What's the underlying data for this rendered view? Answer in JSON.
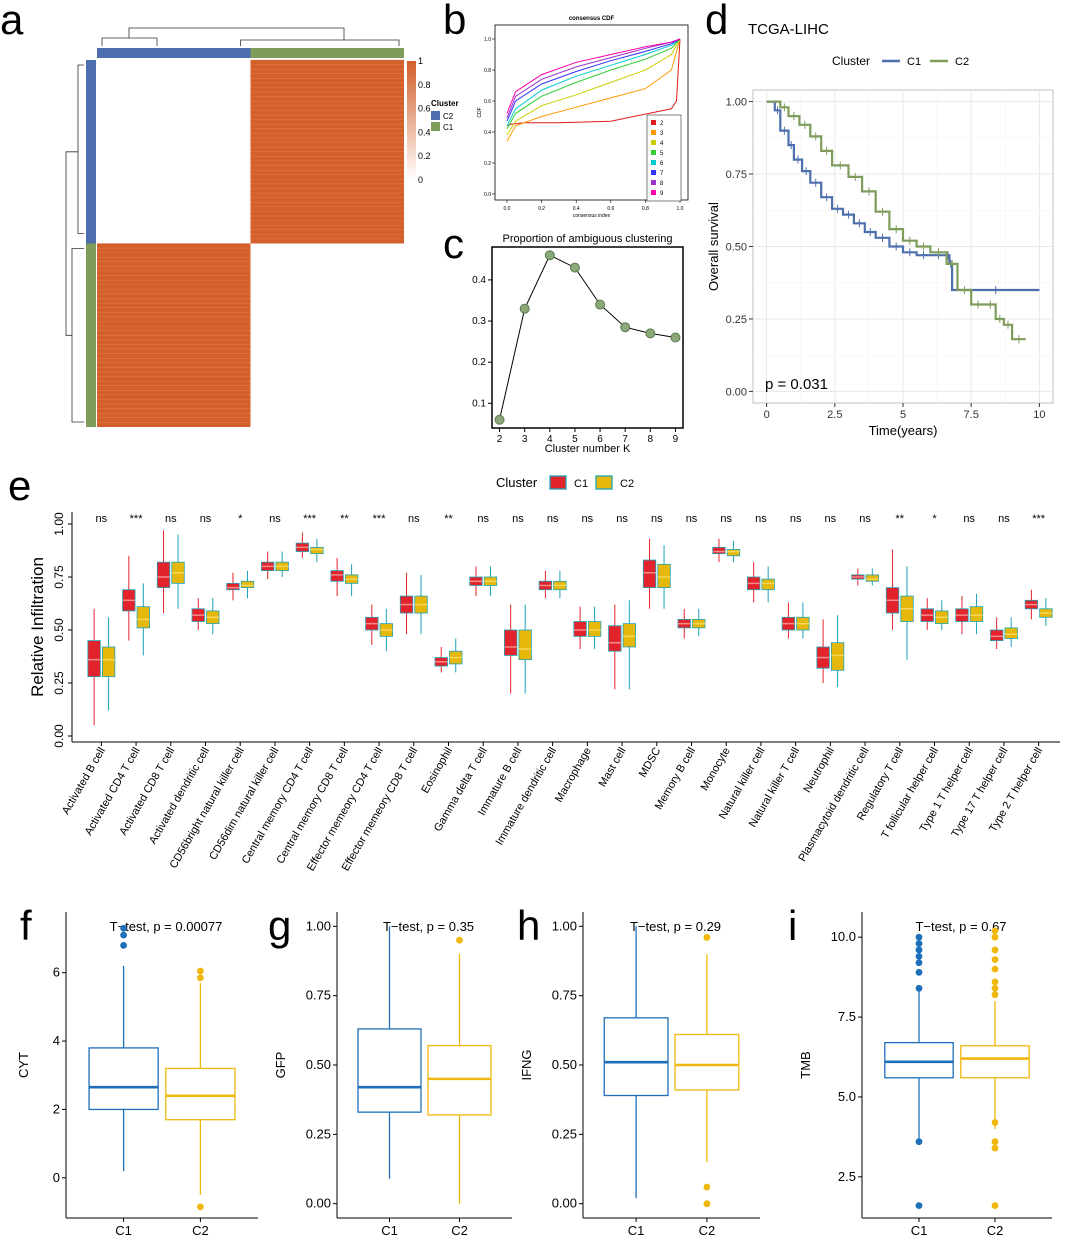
{
  "colors": {
    "heat": "#d35f2a",
    "c1_blue": "#4e6fae",
    "c2_green": "#7e9c5a",
    "box_red": "#e3232b",
    "box_yellow": "#e5b80b",
    "box_teal": "#1ca3b8",
    "lower_blue": "#1e6fba",
    "lower_yellow": "#f0b80e"
  },
  "chart_data": [
    {
      "panel": "a",
      "type": "heatmap",
      "title": "",
      "colorbar_ticks": [
        "1",
        "0.8",
        "0.6",
        "0.4",
        "0.2",
        "0"
      ],
      "legend_title": "Cluster",
      "legend_entries": [
        "C2",
        "C1"
      ],
      "blocks": [
        {
          "cluster": "C2",
          "fraction": 0.5
        },
        {
          "cluster": "C1",
          "fraction": 0.5
        }
      ]
    },
    {
      "panel": "b",
      "type": "line",
      "title": "consensus CDF",
      "xlabel": "consensus index",
      "ylabel": "CDF",
      "xlim": [
        0,
        1
      ],
      "ylim": [
        0,
        1
      ],
      "xticks": [
        "0.0",
        "0.2",
        "0.4",
        "0.6",
        "0.8",
        "1.0"
      ],
      "yticks": [
        "0.0",
        "0.2",
        "0.4",
        "0.6",
        "0.8",
        "1.0"
      ],
      "series": [
        {
          "name": "2",
          "color": "#e31a1c",
          "x": [
            0,
            0.02,
            0.1,
            0.3,
            0.6,
            0.95,
            0.98,
            1.0
          ],
          "y": [
            0.44,
            0.45,
            0.46,
            0.46,
            0.47,
            0.55,
            0.6,
            1.0
          ]
        },
        {
          "name": "3",
          "color": "#ff9900",
          "x": [
            0,
            0.05,
            0.2,
            0.4,
            0.6,
            0.8,
            0.95,
            1.0
          ],
          "y": [
            0.34,
            0.44,
            0.5,
            0.56,
            0.62,
            0.68,
            0.8,
            1.0
          ]
        },
        {
          "name": "4",
          "color": "#cccc00",
          "x": [
            0,
            0.05,
            0.2,
            0.4,
            0.6,
            0.8,
            0.95,
            1.0
          ],
          "y": [
            0.38,
            0.47,
            0.57,
            0.64,
            0.72,
            0.8,
            0.9,
            1.0
          ]
        },
        {
          "name": "5",
          "color": "#33cc33",
          "x": [
            0,
            0.05,
            0.2,
            0.4,
            0.6,
            0.8,
            0.95,
            1.0
          ],
          "y": [
            0.42,
            0.52,
            0.63,
            0.72,
            0.8,
            0.87,
            0.94,
            1.0
          ]
        },
        {
          "name": "6",
          "color": "#00cccc",
          "x": [
            0,
            0.05,
            0.2,
            0.4,
            0.6,
            0.8,
            0.95,
            1.0
          ],
          "y": [
            0.44,
            0.55,
            0.67,
            0.76,
            0.83,
            0.9,
            0.96,
            1.0
          ]
        },
        {
          "name": "7",
          "color": "#3333ff",
          "x": [
            0,
            0.05,
            0.2,
            0.4,
            0.6,
            0.8,
            0.95,
            1.0
          ],
          "y": [
            0.47,
            0.6,
            0.71,
            0.79,
            0.86,
            0.92,
            0.97,
            1.0
          ]
        },
        {
          "name": "8",
          "color": "#9933cc",
          "x": [
            0,
            0.05,
            0.2,
            0.4,
            0.6,
            0.8,
            0.95,
            1.0
          ],
          "y": [
            0.49,
            0.63,
            0.74,
            0.82,
            0.88,
            0.94,
            0.98,
            1.0
          ]
        },
        {
          "name": "9",
          "color": "#ff00aa",
          "x": [
            0,
            0.05,
            0.2,
            0.4,
            0.6,
            0.8,
            0.95,
            1.0
          ],
          "y": [
            0.52,
            0.66,
            0.77,
            0.85,
            0.9,
            0.95,
            0.98,
            1.0
          ]
        }
      ]
    },
    {
      "panel": "c",
      "type": "line",
      "title": "Proportion of ambiguous clustering",
      "xlabel": "Cluster number K",
      "ylabel": "",
      "xlim": [
        1.7,
        9.3
      ],
      "ylim": [
        0.04,
        0.48
      ],
      "xticks": [
        "2",
        "3",
        "4",
        "5",
        "6",
        "7",
        "8",
        "9"
      ],
      "yticks": [
        "0.1",
        "0.2",
        "0.3",
        "0.4"
      ],
      "x": [
        2,
        3,
        4,
        5,
        6,
        7,
        8,
        9
      ],
      "y": [
        0.06,
        0.33,
        0.46,
        0.43,
        0.34,
        0.285,
        0.27,
        0.26
      ]
    },
    {
      "panel": "d",
      "type": "line",
      "title": "TCGA-LIHC",
      "xlabel": "Time(years)",
      "ylabel": "Overall survival",
      "xlim": [
        -0.5,
        10.5
      ],
      "ylim": [
        -0.04,
        1.04
      ],
      "xticks": [
        "0",
        "2.5",
        "5",
        "7.5",
        "10"
      ],
      "yticks": [
        "0.00",
        "0.25",
        "0.50",
        "0.75",
        "1.00"
      ],
      "legend_title": "Cluster",
      "annotation": "p = 0.031",
      "series": [
        {
          "name": "C1",
          "x": [
            0,
            0.3,
            0.5,
            0.8,
            1.0,
            1.3,
            1.6,
            2.0,
            2.4,
            2.8,
            3.2,
            3.6,
            4.0,
            4.5,
            5.0,
            5.5,
            6.0,
            6.6,
            6.7,
            6.8,
            10.0
          ],
          "y": [
            1.0,
            0.97,
            0.9,
            0.85,
            0.8,
            0.76,
            0.72,
            0.67,
            0.63,
            0.61,
            0.58,
            0.55,
            0.53,
            0.5,
            0.48,
            0.47,
            0.47,
            0.47,
            0.44,
            0.35,
            0.35
          ]
        },
        {
          "name": "C2",
          "x": [
            0,
            0.5,
            0.8,
            1.2,
            1.6,
            2.0,
            2.4,
            3.0,
            3.5,
            4.0,
            4.5,
            5.0,
            5.5,
            6.0,
            6.6,
            7.0,
            7.5,
            8.0,
            8.4,
            8.7,
            9.0,
            9.5
          ],
          "y": [
            1.0,
            0.98,
            0.95,
            0.92,
            0.88,
            0.83,
            0.78,
            0.74,
            0.69,
            0.62,
            0.56,
            0.52,
            0.5,
            0.48,
            0.44,
            0.35,
            0.3,
            0.3,
            0.25,
            0.23,
            0.18,
            0.18
          ]
        }
      ]
    },
    {
      "panel": "e",
      "type": "box",
      "title": "",
      "xlabel": "",
      "ylabel": "Relative Infiltration",
      "ylim": [
        0,
        1
      ],
      "yticks": [
        "0.00",
        "0.25",
        "0.50",
        "0.75",
        "1.00"
      ],
      "legend_title": "Cluster",
      "legend_entries": [
        "C1",
        "C2"
      ],
      "categories": [
        "Activated B cell",
        "Activated CD4 T cell",
        "Activated CD8 T cell",
        "Activated dendritic cell",
        "CD56bright natural killer cell",
        "CD56dim natural killer cell",
        "Central memory CD4 T cell",
        "Central memory CD8 T cell",
        "Effector memeory CD4 T cell",
        "Effector memeory CD8 T cell",
        "Eosinophil",
        "Gamma delta T cell",
        "Immature B cell",
        "Immature dendritic cell",
        "Macrophage",
        "Mast cell",
        "MDSC",
        "Memory B cell",
        "Monocyte",
        "Natural killer cell",
        "Natural killer T cell",
        "Neutrophil",
        "Plasmacytoid dendritic cell",
        "Regulatory T cell",
        "T follicular helper cell",
        "Type 1 T helper cell",
        "Type 17 T helper cell",
        "Type 2 T helper cell"
      ],
      "significance": [
        "ns",
        "***",
        "ns",
        "ns",
        "*",
        "ns",
        "***",
        "**",
        "***",
        "ns",
        "**",
        "ns",
        "ns",
        "ns",
        "ns",
        "ns",
        "ns",
        "ns",
        "ns",
        "ns",
        "ns",
        "ns",
        "ns",
        "**",
        "*",
        "ns",
        "ns",
        "***"
      ],
      "series": [
        {
          "name": "C1",
          "stats": [
            [
              0.05,
              0.28,
              0.36,
              0.45,
              0.6
            ],
            [
              0.45,
              0.59,
              0.64,
              0.69,
              0.85
            ],
            [
              0.58,
              0.7,
              0.75,
              0.82,
              0.97
            ],
            [
              0.5,
              0.54,
              0.57,
              0.6,
              0.65
            ],
            [
              0.64,
              0.69,
              0.7,
              0.72,
              0.77
            ],
            [
              0.74,
              0.78,
              0.8,
              0.82,
              0.87
            ],
            [
              0.84,
              0.87,
              0.89,
              0.91,
              0.96
            ],
            [
              0.66,
              0.73,
              0.76,
              0.78,
              0.84
            ],
            [
              0.43,
              0.5,
              0.53,
              0.56,
              0.62
            ],
            [
              0.48,
              0.58,
              0.62,
              0.66,
              0.77
            ],
            [
              0.3,
              0.33,
              0.35,
              0.37,
              0.42
            ],
            [
              0.66,
              0.71,
              0.73,
              0.75,
              0.8
            ],
            [
              0.2,
              0.38,
              0.42,
              0.5,
              0.62
            ],
            [
              0.65,
              0.69,
              0.71,
              0.73,
              0.78
            ],
            [
              0.41,
              0.47,
              0.5,
              0.54,
              0.61
            ],
            [
              0.22,
              0.4,
              0.44,
              0.52,
              0.62
            ],
            [
              0.6,
              0.7,
              0.77,
              0.83,
              0.93
            ],
            [
              0.46,
              0.51,
              0.53,
              0.55,
              0.6
            ],
            [
              0.82,
              0.86,
              0.87,
              0.89,
              0.93
            ],
            [
              0.63,
              0.69,
              0.72,
              0.75,
              0.82
            ],
            [
              0.46,
              0.5,
              0.53,
              0.56,
              0.63
            ],
            [
              0.25,
              0.32,
              0.37,
              0.42,
              0.55
            ],
            [
              0.71,
              0.74,
              0.75,
              0.76,
              0.79
            ],
            [
              0.5,
              0.58,
              0.64,
              0.7,
              0.88
            ],
            [
              0.5,
              0.54,
              0.57,
              0.6,
              0.65
            ],
            [
              0.48,
              0.54,
              0.57,
              0.6,
              0.66
            ],
            [
              0.41,
              0.45,
              0.47,
              0.5,
              0.56
            ],
            [
              0.55,
              0.6,
              0.62,
              0.64,
              0.69
            ]
          ]
        },
        {
          "name": "C2",
          "stats": [
            [
              0.12,
              0.28,
              0.36,
              0.42,
              0.56
            ],
            [
              0.38,
              0.51,
              0.55,
              0.61,
              0.72
            ],
            [
              0.6,
              0.72,
              0.77,
              0.82,
              0.95
            ],
            [
              0.48,
              0.53,
              0.56,
              0.59,
              0.65
            ],
            [
              0.65,
              0.7,
              0.71,
              0.73,
              0.78
            ],
            [
              0.75,
              0.78,
              0.8,
              0.82,
              0.87
            ],
            [
              0.82,
              0.86,
              0.88,
              0.89,
              0.93
            ],
            [
              0.66,
              0.72,
              0.74,
              0.76,
              0.81
            ],
            [
              0.4,
              0.47,
              0.5,
              0.53,
              0.6
            ],
            [
              0.48,
              0.58,
              0.62,
              0.66,
              0.76
            ],
            [
              0.3,
              0.34,
              0.37,
              0.4,
              0.46
            ],
            [
              0.66,
              0.71,
              0.73,
              0.75,
              0.8
            ],
            [
              0.2,
              0.36,
              0.41,
              0.5,
              0.62
            ],
            [
              0.65,
              0.69,
              0.71,
              0.73,
              0.78
            ],
            [
              0.41,
              0.47,
              0.5,
              0.54,
              0.61
            ],
            [
              0.22,
              0.42,
              0.47,
              0.53,
              0.64
            ],
            [
              0.6,
              0.7,
              0.75,
              0.81,
              0.9
            ],
            [
              0.47,
              0.51,
              0.53,
              0.55,
              0.6
            ],
            [
              0.82,
              0.85,
              0.87,
              0.88,
              0.92
            ],
            [
              0.63,
              0.69,
              0.72,
              0.74,
              0.8
            ],
            [
              0.46,
              0.5,
              0.53,
              0.56,
              0.63
            ],
            [
              0.23,
              0.31,
              0.38,
              0.44,
              0.57
            ],
            [
              0.71,
              0.73,
              0.74,
              0.76,
              0.79
            ],
            [
              0.36,
              0.54,
              0.6,
              0.66,
              0.8
            ],
            [
              0.5,
              0.53,
              0.56,
              0.59,
              0.64
            ],
            [
              0.48,
              0.54,
              0.57,
              0.61,
              0.67
            ],
            [
              0.42,
              0.46,
              0.48,
              0.51,
              0.56
            ],
            [
              0.52,
              0.56,
              0.58,
              0.6,
              0.65
            ]
          ]
        }
      ]
    },
    {
      "panel": "f",
      "type": "box",
      "ylabel": "CYT",
      "annotation": "T−test, p = 0.00077",
      "ylim": [
        -1,
        7.6
      ],
      "yticks": [
        "0",
        "2",
        "4",
        "6"
      ],
      "categories": [
        "C1",
        "C2"
      ],
      "stats": [
        [
          0.2,
          2.0,
          2.65,
          3.8,
          6.2
        ],
        [
          -0.5,
          1.7,
          2.4,
          3.2,
          5.7
        ]
      ],
      "outliers": [
        [
          6.8,
          7.1,
          7.3
        ],
        [
          -0.85,
          5.85,
          6.05
        ]
      ]
    },
    {
      "panel": "g",
      "type": "box",
      "ylabel": "GFP",
      "annotation": "T−test, p = 0.35",
      "ylim": [
        -0.03,
        1.03
      ],
      "yticks": [
        "0.00",
        "0.25",
        "0.50",
        "0.75",
        "1.00"
      ],
      "categories": [
        "C1",
        "C2"
      ],
      "stats": [
        [
          0.09,
          0.33,
          0.42,
          0.63,
          1.0
        ],
        [
          0.0,
          0.32,
          0.45,
          0.57,
          0.9
        ]
      ],
      "outliers": [
        [],
        [
          0.95
        ]
      ]
    },
    {
      "panel": "h",
      "type": "box",
      "ylabel": "IFNG",
      "annotation": "T−test, p = 0.29",
      "ylim": [
        -0.03,
        1.03
      ],
      "yticks": [
        "0.00",
        "0.25",
        "0.50",
        "0.75",
        "1.00"
      ],
      "categories": [
        "C1",
        "C2"
      ],
      "stats": [
        [
          0.02,
          0.39,
          0.51,
          0.67,
          1.0
        ],
        [
          0.15,
          0.41,
          0.5,
          0.61,
          0.9
        ]
      ],
      "outliers": [
        [],
        [
          0.0,
          0.06,
          0.96
        ]
      ]
    },
    {
      "panel": "i",
      "type": "box",
      "ylabel": "TMB",
      "annotation": "T−test, p = 0.67",
      "ylim": [
        1.4,
        10.6
      ],
      "yticks": [
        "2.5",
        "5.0",
        "7.5",
        "10.0"
      ],
      "categories": [
        "C1",
        "C2"
      ],
      "stats": [
        [
          3.6,
          5.6,
          6.1,
          6.7,
          8.3
        ],
        [
          4.0,
          5.6,
          6.2,
          6.6,
          8.0
        ]
      ],
      "outliers": [
        [
          1.6,
          3.6,
          8.4,
          8.9,
          9.2,
          9.4,
          9.6,
          9.8,
          10.0
        ],
        [
          1.6,
          3.4,
          3.6,
          4.2,
          8.2,
          8.4,
          8.6,
          9.0,
          9.3,
          9.6,
          10.0,
          10.2
        ]
      ]
    }
  ],
  "panel_letters": [
    "a",
    "b",
    "c",
    "d",
    "e",
    "f",
    "g",
    "h",
    "i"
  ]
}
